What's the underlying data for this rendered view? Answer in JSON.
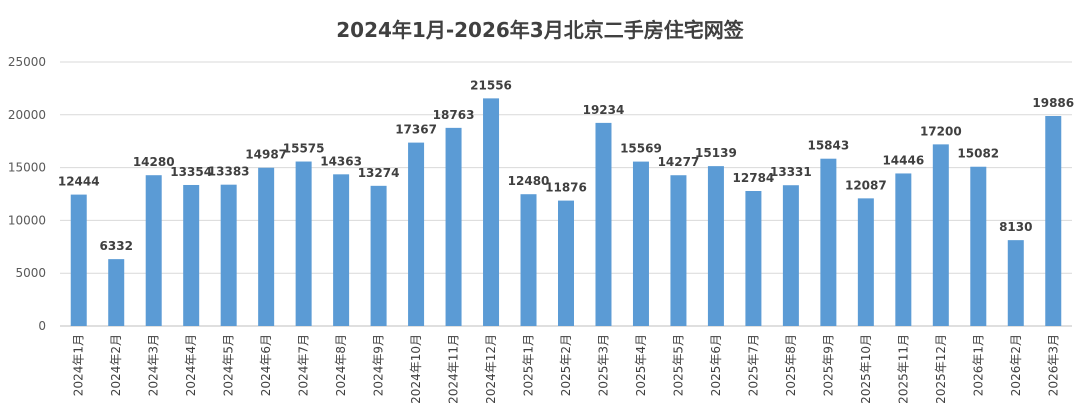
{
  "chart_data": {
    "type": "bar",
    "title": "2024年1月-2026年3月北京二手房住宅网签",
    "xlabel": "",
    "ylabel": "",
    "ylim": [
      0,
      25000
    ],
    "yticks": [
      0,
      5000,
      10000,
      15000,
      20000,
      25000
    ],
    "grid": true,
    "legend": "none",
    "bar_color": "#5b9bd5",
    "categories": [
      "2024年1月",
      "2024年2月",
      "2024年3月",
      "2024年4月",
      "2024年5月",
      "2024年6月",
      "2024年7月",
      "2024年8月",
      "2024年9月",
      "2024年10月",
      "2024年11月",
      "2024年12月",
      "2025年1月",
      "2025年2月",
      "2025年3月",
      "2025年4月",
      "2025年5月",
      "2025年6月",
      "2025年7月",
      "2025年8月",
      "2025年9月",
      "2025年10月",
      "2025年11月",
      "2025年12月",
      "2026年1月",
      "2026年2月",
      "2026年3月"
    ],
    "values": [
      12444,
      6332,
      14280,
      13354,
      13383,
      14987,
      15575,
      14363,
      13274,
      17367,
      18763,
      21556,
      12480,
      11876,
      19234,
      15569,
      14277,
      15139,
      12784,
      13331,
      15843,
      12087,
      14446,
      17200,
      15082,
      8130,
      19886
    ]
  }
}
